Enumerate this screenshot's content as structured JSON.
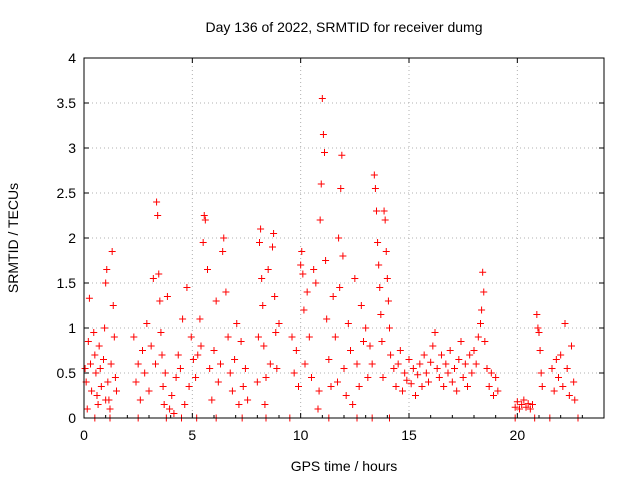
{
  "chart_data": {
    "type": "scatter",
    "title": "Day 136 of 2022, SRMTID for receiver dumg",
    "xlabel": "GPS time / hours",
    "ylabel": "SRMTID / TECUs",
    "xlim": [
      0,
      24
    ],
    "ylim": [
      0,
      4
    ],
    "xticks": [
      "0",
      "5",
      "10",
      "15",
      "20"
    ],
    "yticks": [
      "0",
      "0.5",
      "1",
      "1.5",
      "2",
      "2.5",
      "3",
      "3.5",
      "4"
    ],
    "grid": true,
    "marker": "+",
    "color": "#ff0000",
    "series": [
      {
        "name": "SRMTID",
        "points": [
          [
            0.1,
            0.4
          ],
          [
            0.2,
            0.85
          ],
          [
            0.25,
            1.33
          ],
          [
            0.3,
            0.6
          ],
          [
            0.35,
            0.3
          ],
          [
            0.45,
            0.95
          ],
          [
            0.5,
            0.7
          ],
          [
            0.55,
            0.5
          ],
          [
            0.6,
            0.25
          ],
          [
            0.7,
            0.8
          ],
          [
            0.75,
            0.55
          ],
          [
            0.8,
            0.35
          ],
          [
            0.9,
            0.65
          ],
          [
            0.95,
            1.0
          ],
          [
            1.0,
            1.5
          ],
          [
            1.05,
            1.65
          ],
          [
            1.1,
            0.4
          ],
          [
            1.15,
            0.2
          ],
          [
            1.2,
            0.1
          ],
          [
            1.25,
            0.6
          ],
          [
            1.3,
            1.85
          ],
          [
            1.35,
            1.25
          ],
          [
            1.4,
            0.9
          ],
          [
            1.45,
            0.45
          ],
          [
            1.5,
            0.3
          ],
          [
            0.15,
            0.1
          ],
          [
            0.65,
            0.15
          ],
          [
            1.0,
            0.2
          ],
          [
            2.3,
            0.9
          ],
          [
            2.4,
            0.4
          ],
          [
            2.5,
            0.6
          ],
          [
            2.6,
            0.2
          ],
          [
            2.7,
            0.75
          ],
          [
            2.8,
            0.5
          ],
          [
            2.9,
            1.05
          ],
          [
            3.0,
            0.3
          ],
          [
            3.1,
            0.8
          ],
          [
            3.2,
            1.55
          ],
          [
            3.3,
            0.6
          ],
          [
            3.35,
            2.4
          ],
          [
            3.4,
            2.25
          ],
          [
            3.45,
            1.6
          ],
          [
            3.5,
            1.3
          ],
          [
            3.55,
            0.95
          ],
          [
            3.6,
            0.7
          ],
          [
            3.65,
            0.35
          ],
          [
            3.7,
            0.15
          ],
          [
            3.75,
            0.5
          ],
          [
            3.85,
            1.35
          ],
          [
            3.95,
            0.1
          ],
          [
            4.05,
            0.25
          ],
          [
            4.15,
            0.05
          ],
          [
            4.25,
            0.45
          ],
          [
            4.35,
            0.7
          ],
          [
            4.45,
            0.55
          ],
          [
            4.55,
            1.1
          ],
          [
            4.65,
            0.15
          ],
          [
            4.75,
            1.45
          ],
          [
            4.85,
            0.35
          ],
          [
            4.95,
            0.9
          ],
          [
            5.05,
            0.65
          ],
          [
            5.15,
            0.45
          ],
          [
            5.25,
            0.7
          ],
          [
            5.35,
            1.1
          ],
          [
            5.4,
            0.8
          ],
          [
            5.5,
            1.95
          ],
          [
            5.55,
            2.25
          ],
          [
            5.6,
            2.2
          ],
          [
            5.7,
            1.65
          ],
          [
            5.8,
            0.55
          ],
          [
            5.9,
            0.2
          ],
          [
            6.0,
            0.75
          ],
          [
            6.1,
            1.3
          ],
          [
            6.2,
            0.4
          ],
          [
            6.3,
            0.6
          ],
          [
            6.4,
            1.85
          ],
          [
            6.45,
            2.0
          ],
          [
            6.55,
            1.4
          ],
          [
            6.65,
            0.9
          ],
          [
            6.75,
            0.5
          ],
          [
            6.85,
            0.3
          ],
          [
            6.95,
            0.65
          ],
          [
            7.05,
            1.05
          ],
          [
            7.15,
            0.15
          ],
          [
            7.25,
            0.85
          ],
          [
            7.35,
            0.35
          ],
          [
            7.45,
            0.55
          ],
          [
            7.55,
            0.2
          ],
          [
            8.0,
            0.4
          ],
          [
            8.05,
            0.9
          ],
          [
            8.1,
            1.95
          ],
          [
            8.15,
            2.1
          ],
          [
            8.2,
            1.55
          ],
          [
            8.25,
            1.25
          ],
          [
            8.3,
            0.8
          ],
          [
            8.35,
            0.15
          ],
          [
            8.4,
            0.45
          ],
          [
            8.5,
            1.65
          ],
          [
            8.6,
            0.6
          ],
          [
            8.7,
            1.9
          ],
          [
            8.75,
            2.05
          ],
          [
            8.8,
            1.35
          ],
          [
            8.85,
            0.95
          ],
          [
            8.9,
            0.55
          ],
          [
            9.0,
            1.05
          ],
          [
            9.6,
            0.9
          ],
          [
            9.7,
            0.5
          ],
          [
            9.8,
            0.75
          ],
          [
            9.9,
            0.35
          ],
          [
            10.0,
            1.7
          ],
          [
            10.05,
            1.85
          ],
          [
            10.1,
            1.6
          ],
          [
            10.15,
            1.2
          ],
          [
            10.2,
            0.6
          ],
          [
            10.3,
            1.4
          ],
          [
            10.4,
            0.9
          ],
          [
            10.5,
            0.45
          ],
          [
            10.6,
            1.65
          ],
          [
            10.7,
            1.5
          ],
          [
            10.8,
            0.1
          ],
          [
            10.85,
            0.3
          ],
          [
            10.9,
            2.2
          ],
          [
            10.95,
            2.6
          ],
          [
            11.0,
            3.55
          ],
          [
            11.05,
            3.15
          ],
          [
            11.1,
            2.95
          ],
          [
            11.15,
            1.75
          ],
          [
            11.2,
            1.1
          ],
          [
            11.3,
            0.65
          ],
          [
            11.4,
            0.35
          ],
          [
            11.5,
            1.35
          ],
          [
            11.6,
            0.9
          ],
          [
            11.7,
            0.4
          ],
          [
            11.75,
            2.0
          ],
          [
            11.8,
            1.45
          ],
          [
            11.85,
            2.55
          ],
          [
            11.9,
            2.92
          ],
          [
            11.95,
            1.8
          ],
          [
            12.0,
            0.55
          ],
          [
            12.1,
            0.25
          ],
          [
            12.2,
            1.05
          ],
          [
            12.3,
            0.75
          ],
          [
            12.4,
            0.15
          ],
          [
            12.5,
            1.55
          ],
          [
            12.6,
            0.6
          ],
          [
            12.7,
            0.35
          ],
          [
            12.8,
            1.25
          ],
          [
            12.9,
            0.85
          ],
          [
            13.0,
            1.0
          ],
          [
            13.1,
            0.45
          ],
          [
            13.2,
            0.8
          ],
          [
            13.3,
            0.6
          ],
          [
            13.4,
            2.7
          ],
          [
            13.45,
            2.55
          ],
          [
            13.5,
            2.3
          ],
          [
            13.55,
            1.95
          ],
          [
            13.6,
            1.7
          ],
          [
            13.65,
            1.45
          ],
          [
            13.7,
            1.15
          ],
          [
            13.75,
            0.85
          ],
          [
            13.8,
            0.45
          ],
          [
            13.85,
            2.3
          ],
          [
            13.9,
            2.2
          ],
          [
            13.95,
            1.85
          ],
          [
            14.0,
            1.55
          ],
          [
            14.05,
            1.3
          ],
          [
            14.1,
            1.0
          ],
          [
            14.15,
            0.7
          ],
          [
            14.3,
            0.55
          ],
          [
            14.4,
            0.35
          ],
          [
            14.5,
            0.6
          ],
          [
            14.6,
            0.75
          ],
          [
            14.7,
            0.3
          ],
          [
            14.8,
            0.5
          ],
          [
            14.9,
            0.42
          ],
          [
            15.0,
            0.65
          ],
          [
            15.1,
            0.38
          ],
          [
            15.2,
            0.55
          ],
          [
            15.3,
            0.25
          ],
          [
            15.4,
            0.48
          ],
          [
            15.5,
            0.6
          ],
          [
            15.6,
            0.35
          ],
          [
            15.7,
            0.7
          ],
          [
            15.8,
            0.5
          ],
          [
            15.9,
            0.4
          ],
          [
            16.0,
            0.62
          ],
          [
            16.1,
            0.8
          ],
          [
            16.2,
            0.95
          ],
          [
            16.3,
            0.55
          ],
          [
            16.4,
            0.45
          ],
          [
            16.5,
            0.7
          ],
          [
            16.6,
            0.35
          ],
          [
            16.7,
            0.6
          ],
          [
            16.8,
            0.5
          ],
          [
            16.9,
            0.75
          ],
          [
            17.0,
            0.4
          ],
          [
            17.1,
            0.55
          ],
          [
            17.2,
            0.3
          ],
          [
            17.3,
            0.65
          ],
          [
            17.4,
            0.85
          ],
          [
            17.5,
            0.45
          ],
          [
            17.6,
            0.6
          ],
          [
            17.7,
            0.35
          ],
          [
            17.8,
            0.7
          ],
          [
            17.9,
            0.5
          ],
          [
            18.0,
            0.75
          ],
          [
            18.1,
            0.6
          ],
          [
            18.2,
            0.9
          ],
          [
            18.3,
            1.05
          ],
          [
            18.35,
            1.2
          ],
          [
            18.4,
            1.62
          ],
          [
            18.45,
            1.4
          ],
          [
            18.5,
            0.85
          ],
          [
            18.6,
            0.55
          ],
          [
            18.7,
            0.35
          ],
          [
            18.8,
            0.5
          ],
          [
            18.9,
            0.25
          ],
          [
            19.0,
            0.45
          ],
          [
            19.1,
            0.3
          ],
          [
            19.9,
            0.12
          ],
          [
            20.0,
            0.18
          ],
          [
            20.1,
            0.1
          ],
          [
            20.2,
            0.15
          ],
          [
            20.3,
            0.2
          ],
          [
            20.4,
            0.12
          ],
          [
            20.5,
            0.16
          ],
          [
            20.6,
            0.1
          ],
          [
            20.7,
            0.15
          ],
          [
            20.9,
            1.15
          ],
          [
            20.95,
            1.0
          ],
          [
            21.0,
            0.95
          ],
          [
            21.05,
            0.75
          ],
          [
            21.1,
            0.5
          ],
          [
            21.15,
            0.35
          ],
          [
            21.6,
            0.55
          ],
          [
            21.7,
            0.3
          ],
          [
            21.8,
            0.65
          ],
          [
            21.9,
            0.45
          ],
          [
            22.0,
            0.7
          ],
          [
            22.1,
            0.35
          ],
          [
            22.2,
            1.05
          ],
          [
            22.3,
            0.55
          ],
          [
            22.4,
            0.25
          ],
          [
            22.5,
            0.8
          ],
          [
            22.6,
            0.4
          ],
          [
            22.65,
            0.2
          ],
          [
            0.05,
            0.55
          ],
          [
            0.5,
            0.0
          ],
          [
            1.2,
            0.0
          ],
          [
            2.5,
            0.0
          ],
          [
            3.8,
            0.0
          ],
          [
            4.5,
            0.0
          ],
          [
            5.2,
            0.0
          ],
          [
            6.1,
            0.0
          ],
          [
            7.3,
            0.0
          ],
          [
            8.4,
            0.0
          ],
          [
            9.5,
            0.0
          ],
          [
            11.3,
            0.0
          ],
          [
            12.6,
            0.0
          ],
          [
            13.3,
            0.0
          ],
          [
            14.1,
            0.0
          ],
          [
            19.9,
            0.0
          ],
          [
            20.8,
            0.0
          ],
          [
            21.5,
            0.0
          ],
          [
            22.8,
            0.0
          ]
        ]
      }
    ]
  }
}
